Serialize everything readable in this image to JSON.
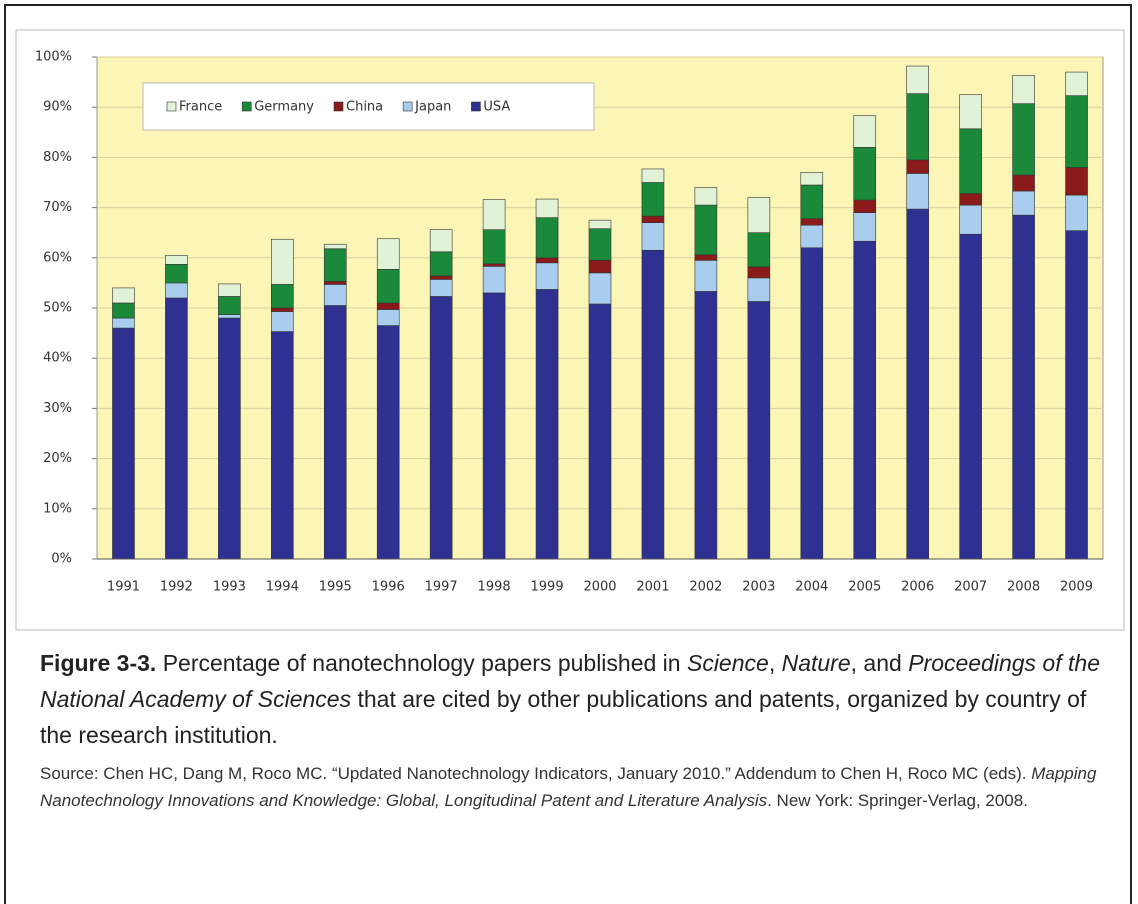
{
  "chart_data": {
    "type": "stacked-bar",
    "categories": [
      "1991",
      "1992",
      "1993",
      "1994",
      "1995",
      "1996",
      "1997",
      "1998",
      "1999",
      "2000",
      "2001",
      "2002",
      "2003",
      "2004",
      "2005",
      "2006",
      "2007",
      "2008",
      "2009"
    ],
    "series": [
      {
        "name": "USA",
        "color": "#2e3192",
        "values": [
          46,
          52,
          48,
          45.3,
          50.5,
          46.5,
          52.3,
          53,
          53.7,
          50.8,
          61.5,
          53.3,
          51.3,
          62,
          63.3,
          69.7,
          64.7,
          68.5,
          65.4
        ]
      },
      {
        "name": "Japan",
        "color": "#a9cdee",
        "values": [
          2,
          3,
          0.7,
          4,
          4.2,
          3.2,
          3.4,
          5.3,
          5.3,
          6.2,
          5.5,
          6.2,
          4.7,
          4.5,
          5.7,
          7.1,
          5.8,
          4.8,
          7.1
        ]
      },
      {
        "name": "China",
        "color": "#8b1a1a",
        "values": [
          0,
          0,
          0,
          0.7,
          0.6,
          1.3,
          0.7,
          0.5,
          1,
          2.5,
          1.3,
          1.1,
          2.2,
          1.3,
          2.5,
          2.7,
          2.3,
          3.2,
          5.5
        ]
      },
      {
        "name": "Germany",
        "color": "#1a8a3a",
        "values": [
          3,
          3.7,
          3.6,
          4.7,
          6.5,
          6.7,
          4.8,
          6.8,
          8,
          6.3,
          6.7,
          9.9,
          6.8,
          6.7,
          10.5,
          13.2,
          12.9,
          14.2,
          14.3
        ]
      },
      {
        "name": "France",
        "color": "#e2f2d6",
        "values": [
          3,
          1.8,
          2.5,
          9,
          0.9,
          6.1,
          4.4,
          6,
          3.7,
          1.7,
          2.7,
          3.5,
          7,
          2.5,
          6.3,
          5.5,
          6.8,
          5.6,
          4.7
        ]
      }
    ],
    "ylim": [
      0,
      100
    ],
    "yticks": [
      {
        "value": 0,
        "label": "0%"
      },
      {
        "value": 10,
        "label": "10%"
      },
      {
        "value": 20,
        "label": "20%"
      },
      {
        "value": 30,
        "label": "30%"
      },
      {
        "value": 40,
        "label": "40%"
      },
      {
        "value": 50,
        "label": "50%"
      },
      {
        "value": 60,
        "label": "60%"
      },
      {
        "value": 70,
        "label": "70%"
      },
      {
        "value": 80,
        "label": "80%"
      },
      {
        "value": 90,
        "label": "90%"
      },
      {
        "value": 100,
        "label": "100%"
      }
    ],
    "grid": true,
    "legend": "top-left",
    "background": "#fbf5b6"
  },
  "caption": {
    "label": "Figure 3-3.",
    "text": [
      " Percentage of nanotechnology papers published in ",
      "Science",
      ", ",
      "Nature",
      ", and ",
      "Proceedings of the National Academy of Sciences",
      " that are cited by other publications and patents, organized by country of the research institution."
    ]
  },
  "source": {
    "text": [
      "Source: Chen HC, Dang M, Roco MC. “Updated Nanotechnology Indicators, January 2010.” Addendum to Chen H, Roco MC (eds). ",
      "Mapping Nanotechnology Innovations and Knowledge: Global, Longitudinal Patent and Literature Analysis",
      ". New York: Springer-Verlag, 2008."
    ]
  }
}
